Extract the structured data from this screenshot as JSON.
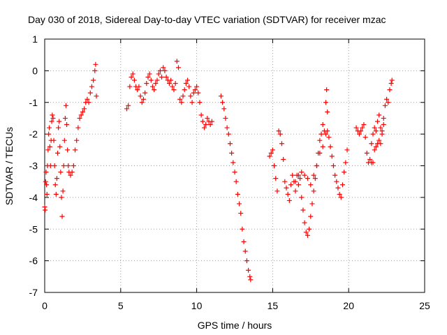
{
  "chart_data": {
    "type": "scatter",
    "title": "Day 030 of 2018, Sidereal Day-to-day VTEC variation (SDTVAR) for receiver mzac",
    "xlabel": "GPS time / hours",
    "ylabel": "SDTVAR / TECUs",
    "xlim": [
      0,
      25
    ],
    "ylim": [
      -7,
      1
    ],
    "xticks": [
      0,
      5,
      10,
      15,
      20,
      25
    ],
    "yticks": [
      -7,
      -6,
      -5,
      -4,
      -3,
      -2,
      -1,
      0,
      1
    ],
    "xtick_labels": [
      "0",
      "5",
      "10",
      "15",
      "20",
      "25"
    ],
    "ytick_labels": [
      "-7",
      "-6",
      "-5",
      "-4",
      "-3",
      "-2",
      "-1",
      "0",
      "1"
    ],
    "grid": true,
    "marker": "+",
    "color": "#ff0000",
    "series": [
      {
        "name": "seg1",
        "x": [
          0.0,
          0.03,
          0.06,
          0.09,
          0.12,
          0.15,
          0.18,
          0.22,
          0.26,
          0.3,
          0.34,
          0.38,
          0.42,
          0.46,
          0.5,
          0.55,
          0.6,
          0.65,
          0.7,
          0.75,
          0.8,
          0.85,
          0.9,
          0.95,
          1.0,
          1.05,
          1.1,
          1.15,
          1.2,
          1.25,
          1.3,
          1.35,
          1.4,
          1.45,
          1.5,
          1.55,
          1.6,
          1.7,
          1.8,
          1.9,
          2.0,
          2.1,
          2.2,
          2.3,
          2.4,
          2.5,
          2.6,
          2.7,
          2.8,
          2.9,
          3.0,
          3.1,
          3.2,
          3.3,
          3.35,
          3.4
        ],
        "y": [
          -4.3,
          -4.4,
          -3.5,
          -3.2,
          -3.6,
          -3.9,
          -3.0,
          -2.5,
          -2.0,
          -1.8,
          -2.4,
          -3.0,
          -2.2,
          -1.6,
          -1.4,
          -1.5,
          -2.2,
          -3.0,
          -3.6,
          -3.9,
          -3.4,
          -2.6,
          -1.8,
          -1.6,
          -2.4,
          -3.2,
          -4.0,
          -4.6,
          -3.8,
          -3.0,
          -2.2,
          -1.5,
          -1.1,
          -1.7,
          -2.5,
          -3.0,
          -3.2,
          -3.3,
          -3.2,
          -3.0,
          -2.5,
          -2.2,
          -1.8,
          -1.5,
          -1.4,
          -1.3,
          -1.2,
          -1.0,
          -0.9,
          -1.0,
          -0.7,
          -0.5,
          -0.3,
          0.0,
          0.2,
          -0.8
        ]
      },
      {
        "name": "seg2",
        "x": [
          5.4,
          5.5,
          5.6,
          5.7,
          5.8,
          5.9,
          6.0,
          6.1,
          6.2,
          6.3,
          6.4,
          6.5,
          6.6,
          6.7,
          6.8,
          6.9,
          7.0,
          7.1,
          7.2,
          7.3,
          7.4,
          7.5,
          7.6,
          7.7,
          7.8,
          7.9,
          8.0,
          8.1,
          8.2,
          8.3,
          8.4,
          8.5,
          8.6,
          8.7,
          8.8,
          8.9,
          9.0,
          9.1,
          9.2,
          9.3,
          9.4,
          9.5,
          9.6,
          9.7,
          9.8,
          9.9,
          10.0,
          10.1,
          10.2,
          10.3,
          10.4,
          10.5,
          10.6,
          10.7,
          10.8,
          10.9,
          11.0
        ],
        "y": [
          -1.2,
          -1.1,
          -0.5,
          -0.2,
          -0.1,
          -0.3,
          -0.5,
          -0.6,
          -0.5,
          -0.8,
          -1.0,
          -0.9,
          -0.7,
          -0.4,
          -0.2,
          -0.1,
          -0.3,
          -0.5,
          -0.6,
          -0.4,
          -0.3,
          -0.1,
          0.0,
          -0.2,
          0.1,
          0.0,
          -0.2,
          -0.3,
          -0.4,
          -0.3,
          -0.5,
          -0.6,
          -0.4,
          0.3,
          0.1,
          -0.9,
          -1.0,
          -0.8,
          -0.6,
          -0.4,
          -0.3,
          -0.5,
          -0.8,
          -1.0,
          -0.7,
          -0.6,
          -0.5,
          -0.7,
          -1.0,
          -1.4,
          -1.6,
          -1.8,
          -1.7,
          -1.5,
          -1.6,
          -1.7,
          -1.6
        ]
      },
      {
        "name": "seg3",
        "x": [
          11.6,
          11.7,
          11.8,
          11.9,
          12.0,
          12.1,
          12.2,
          12.3,
          12.4,
          12.5,
          12.6,
          12.7,
          12.8,
          12.9,
          13.0,
          13.1,
          13.2,
          13.3,
          13.4,
          13.5,
          13.55
        ],
        "y": [
          -0.8,
          -1.0,
          -1.2,
          -1.5,
          -1.8,
          -2.0,
          -2.3,
          -2.6,
          -2.9,
          -3.2,
          -3.5,
          -3.9,
          -4.2,
          -4.5,
          -5.0,
          -5.4,
          -5.7,
          -6.0,
          -6.3,
          -6.5,
          -6.6
        ]
      },
      {
        "name": "seg4",
        "x": [
          14.8,
          14.9,
          15.0,
          15.1,
          15.2,
          15.3,
          15.4,
          15.5,
          15.6,
          15.7,
          15.8,
          15.9,
          16.0,
          16.1,
          16.2,
          16.3,
          16.4,
          16.5,
          16.6,
          16.7,
          16.8,
          16.9,
          17.0,
          17.1,
          17.2,
          17.3,
          17.4,
          17.5,
          17.6,
          17.7,
          17.8,
          17.9,
          18.0,
          18.1,
          18.2,
          18.3,
          18.4,
          18.5,
          18.6,
          18.7,
          18.8,
          18.9,
          19.0,
          19.1,
          19.2,
          19.3,
          19.4,
          19.5,
          19.6,
          19.7,
          19.8,
          19.9
        ],
        "y": [
          -2.7,
          -2.6,
          -2.5,
          -3.0,
          -3.4,
          -3.8,
          -1.9,
          -2.0,
          -2.3,
          -2.8,
          -3.5,
          -3.7,
          -3.9,
          -4.1,
          -3.6,
          -3.3,
          -3.5,
          -3.8,
          -3.3,
          -3.6,
          -3.4,
          -4.0,
          -4.4,
          -4.8,
          -5.1,
          -5.2,
          -5.0,
          -4.6,
          -4.2,
          -3.8,
          -3.4,
          -3.0,
          -2.6,
          -2.2,
          -2.0,
          -1.7,
          -1.9,
          -2.0,
          -1.9,
          -2.1,
          -2.4,
          -2.7,
          -3.0,
          -3.3,
          -3.5,
          -3.7,
          -3.9,
          -4.0,
          -3.6,
          -3.2,
          -2.9,
          -2.5
        ]
      },
      {
        "name": "seg4b",
        "x": [
          16.5,
          16.7,
          16.9,
          17.1,
          17.3,
          17.5,
          17.7,
          17.9,
          18.1,
          18.3,
          18.5,
          18.55,
          18.6
        ],
        "y": [
          -3.5,
          -3.3,
          -3.2,
          -3.3,
          -3.4,
          -3.6,
          -3.3,
          -3.0,
          -2.6,
          -2.4,
          -1.0,
          -0.6,
          -1.3
        ]
      },
      {
        "name": "seg5",
        "x": [
          20.5,
          20.6,
          20.7,
          20.8,
          20.9,
          21.0,
          21.1,
          21.2,
          21.3,
          21.4,
          21.5,
          21.6,
          21.7,
          21.8,
          21.9,
          22.0,
          22.1,
          22.2,
          22.3,
          22.4,
          22.5,
          22.6,
          22.7,
          22.8,
          22.85
        ],
        "y": [
          -1.8,
          -1.9,
          -2.0,
          -1.9,
          -1.8,
          -1.7,
          -2.1,
          -2.6,
          -2.9,
          -2.8,
          -2.3,
          -2.0,
          -1.8,
          -1.9,
          -1.6,
          -1.4,
          -1.8,
          -2.0,
          -1.5,
          -1.1,
          -0.9,
          -1.0,
          -0.6,
          -0.4,
          -0.3
        ]
      },
      {
        "name": "seg5b",
        "x": [
          21.5,
          21.6,
          21.7,
          21.8,
          21.9,
          22.0,
          22.1,
          22.2,
          22.3
        ],
        "y": [
          -2.9,
          -2.9,
          -2.5,
          -2.4,
          -2.3,
          -2.2,
          -2.3,
          -1.9,
          -1.7
        ]
      }
    ]
  }
}
